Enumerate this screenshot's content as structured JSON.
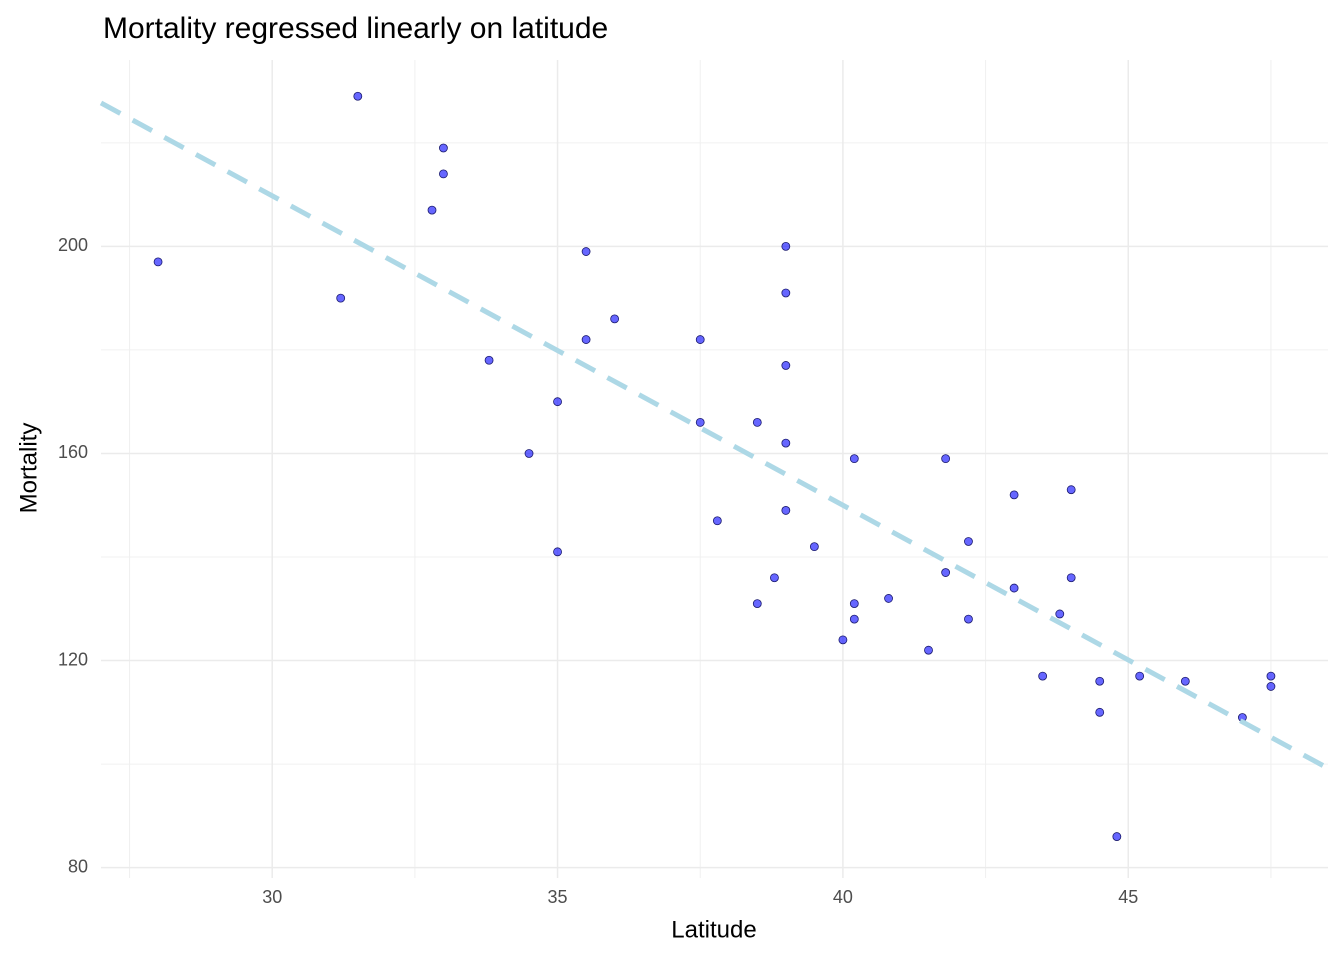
{
  "chart_data": {
    "type": "scatter",
    "title": "Mortality regressed linearly on latitude",
    "x_label": "Latitude",
    "y_label": "Mortality",
    "xlim": [
      27.0,
      48.5
    ],
    "ylim": [
      78,
      236
    ],
    "xticks": [
      30,
      35,
      40,
      45
    ],
    "yticks": [
      80,
      120,
      160,
      200
    ],
    "grid": true,
    "series": [
      {
        "name": "Mortality",
        "color": "#0000ff",
        "x": [
          28.0,
          31.5,
          31.2,
          33.0,
          33.0,
          32.8,
          33.8,
          34.5,
          35.0,
          35.0,
          35.5,
          35.5,
          36.0,
          37.5,
          37.5,
          37.8,
          38.5,
          38.5,
          38.8,
          39.0,
          39.0,
          39.0,
          39.0,
          39.0,
          39.5,
          40.0,
          40.2,
          40.2,
          40.2,
          40.8,
          41.5,
          41.8,
          41.8,
          42.2,
          42.2,
          43.0,
          43.0,
          43.5,
          43.8,
          44.0,
          44.0,
          44.5,
          44.5,
          44.8,
          45.2,
          46.0,
          47.0,
          47.5,
          47.5
        ],
        "values": [
          197,
          229,
          190,
          219,
          214,
          207,
          178,
          160,
          170,
          141,
          199,
          182,
          186,
          182,
          166,
          147,
          166,
          131,
          136,
          200,
          191,
          177,
          162,
          149,
          142,
          124,
          159,
          131,
          128,
          132,
          122,
          159,
          137,
          143,
          128,
          152,
          134,
          117,
          129,
          153,
          136,
          116,
          110,
          86,
          117,
          116,
          109,
          117,
          115
        ]
      },
      {
        "type": "line",
        "color": "#add8e6",
        "dashed": true,
        "x": [
          27.0,
          48.5
        ],
        "values": [
          227.7,
          99.2
        ]
      }
    ]
  }
}
